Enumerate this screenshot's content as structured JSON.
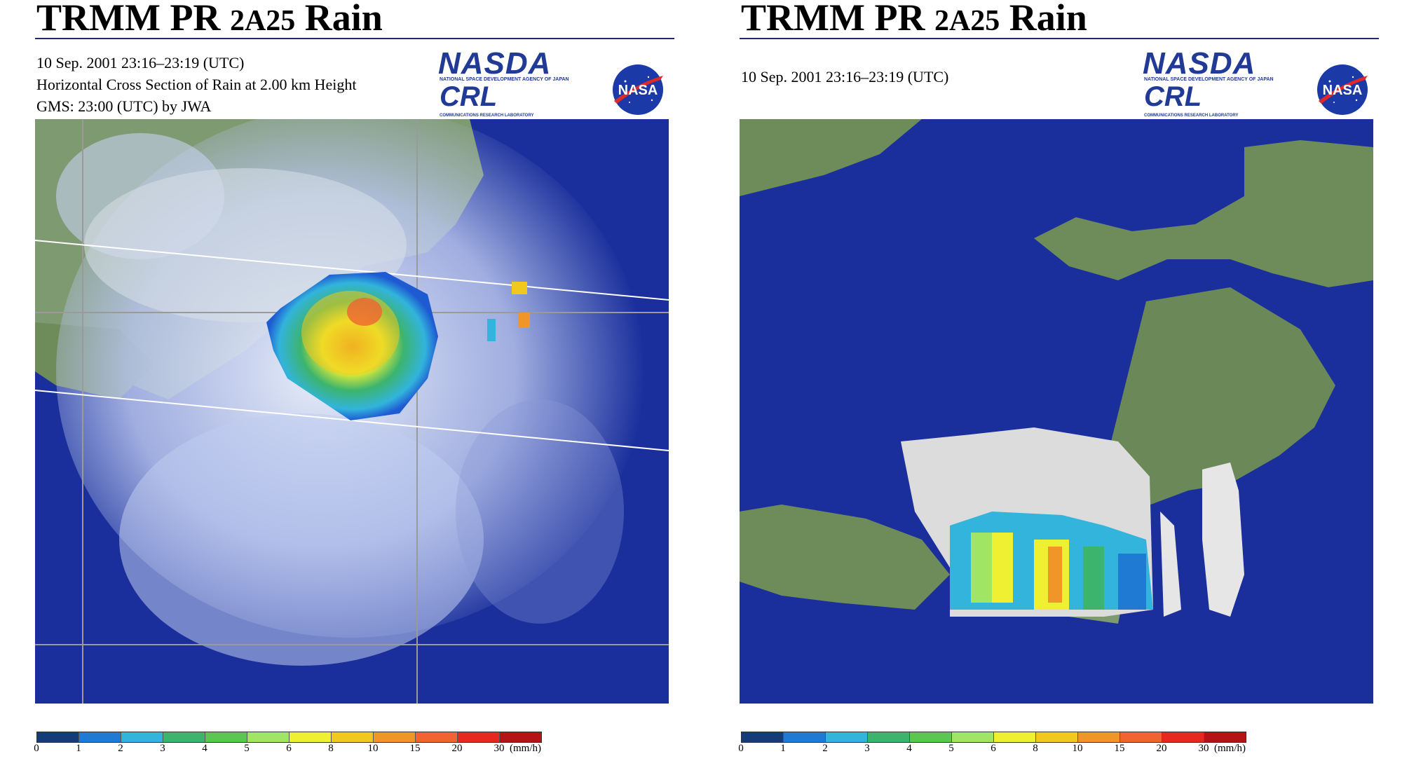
{
  "panels": [
    {
      "title_main": "TRMM PR",
      "title_code": "2A25",
      "title_suffix": "Rain",
      "info_lines": [
        "10 Sep. 2001  23:16–23:19 (UTC)",
        "Horizontal Cross Section of Rain at 2.00 km Height",
        "GMS: 23:00 (UTC) by JWA"
      ]
    },
    {
      "title_main": "TRMM PR",
      "title_code": "2A25",
      "title_suffix": "Rain",
      "info_lines": [
        "10 Sep. 2001  23:16–23:19 (UTC)"
      ]
    }
  ],
  "logos": {
    "nasda_text": "NASDA",
    "nasda_subtext": "NATIONAL SPACE DEVELOPMENT AGENCY OF JAPAN",
    "crl_text": "CRL",
    "crl_subtext": "COMMUNICATIONS RESEARCH LABORATORY",
    "nasa_text": "NASA"
  },
  "legend": {
    "ticks": [
      "0",
      "1",
      "2",
      "3",
      "4",
      "5",
      "6",
      "8",
      "10",
      "15",
      "20",
      "30"
    ],
    "unit": "(mm/h)",
    "colors": [
      "#143c78",
      "#1e7ad2",
      "#32b4dc",
      "#3cb46e",
      "#5ac850",
      "#a0e664",
      "#f0f032",
      "#f0c81e",
      "#f09628",
      "#f06432",
      "#e6281e",
      "#b41414"
    ]
  },
  "colors": {
    "ocean": "#1a2f9c",
    "land": "#6e8c5a",
    "cloud": "#d0d8f0",
    "title_rule": "#1d2a6e"
  }
}
